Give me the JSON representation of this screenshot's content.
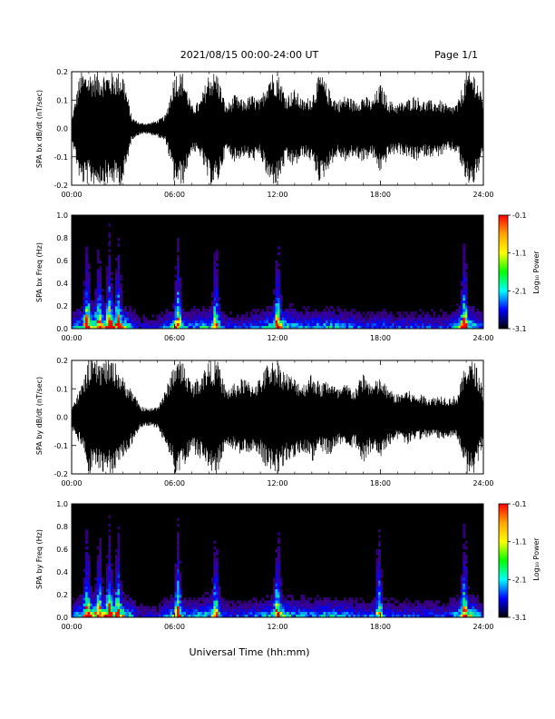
{
  "header": {
    "title": "2021/08/15  00:00-24:00 UT",
    "page": "Page 1/1"
  },
  "xaxis_title": "Universal Time (hh:mm)",
  "chart_data": [
    {
      "type": "line",
      "panel": "bx_waveform",
      "ylabel": "SPA bx dB/dt (nT/sec)",
      "xlim": [
        0,
        24
      ],
      "ylim": [
        -0.2,
        0.2
      ],
      "x_ticks": [
        "00:00",
        "06:00",
        "12:00",
        "18:00",
        "24:00"
      ],
      "y_ticks": [
        "-0.2",
        "-0.1",
        "0.0",
        "0.1",
        "0.2"
      ],
      "envelope_hours": [
        0,
        0.5,
        1,
        1.5,
        2,
        2.5,
        3,
        3.5,
        4,
        4.5,
        5,
        5.5,
        6,
        6.5,
        7,
        7.5,
        8,
        8.5,
        9,
        9.5,
        10,
        10.5,
        11,
        11.5,
        12,
        12.5,
        13,
        13.5,
        14,
        14.5,
        15,
        15.5,
        16,
        16.5,
        17,
        17.5,
        18,
        18.5,
        19,
        19.5,
        20,
        20.5,
        21,
        21.5,
        22,
        22.5,
        23,
        23.5,
        24
      ],
      "envelope_amplitude": [
        0.03,
        0.2,
        0.2,
        0.2,
        0.2,
        0.2,
        0.2,
        0.04,
        0.02,
        0.02,
        0.03,
        0.05,
        0.2,
        0.2,
        0.08,
        0.1,
        0.2,
        0.2,
        0.08,
        0.12,
        0.1,
        0.12,
        0.1,
        0.2,
        0.2,
        0.12,
        0.14,
        0.1,
        0.12,
        0.2,
        0.14,
        0.1,
        0.12,
        0.1,
        0.12,
        0.1,
        0.16,
        0.1,
        0.09,
        0.1,
        0.12,
        0.1,
        0.1,
        0.1,
        0.08,
        0.09,
        0.2,
        0.2,
        0.1
      ]
    },
    {
      "type": "heatmap",
      "panel": "bx_spectrogram",
      "ylabel": "SPA bx Freq (Hz)",
      "xlim": [
        0,
        24
      ],
      "ylim": [
        0.0,
        1.0
      ],
      "x_ticks": [
        "00:00",
        "06:00",
        "12:00",
        "18:00",
        "24:00"
      ],
      "y_ticks": [
        "0.0",
        "0.2",
        "0.4",
        "0.6",
        "0.8",
        "1.0"
      ],
      "colorbar_label": "Log₁₀ Power",
      "colorbar_ticks": [
        "-0.1",
        "-1.1",
        "-2.1",
        "-3.1"
      ],
      "colorbar_range": [
        -3.1,
        -0.1
      ],
      "bursts_hours": [
        0.9,
        1.6,
        2.2,
        2.7,
        6.2,
        8.4,
        12.0,
        22.9
      ],
      "activity_hours": [
        0,
        1,
        2,
        3,
        4,
        5,
        6,
        7,
        8,
        9,
        10,
        11,
        12,
        13,
        14,
        15,
        16,
        17,
        18,
        19,
        20,
        21,
        22,
        23,
        24
      ],
      "activity_level": [
        0.4,
        0.9,
        0.9,
        0.8,
        0.3,
        0.3,
        0.7,
        0.5,
        0.7,
        0.4,
        0.4,
        0.5,
        0.8,
        0.6,
        0.5,
        0.6,
        0.5,
        0.4,
        0.5,
        0.4,
        0.4,
        0.4,
        0.4,
        0.9,
        0.4
      ]
    },
    {
      "type": "line",
      "panel": "by_waveform",
      "ylabel": "SPA by dB/dt (nT/sec)",
      "xlim": [
        0,
        24
      ],
      "ylim": [
        -0.2,
        0.2
      ],
      "x_ticks": [
        "00:00",
        "06:00",
        "12:00",
        "18:00",
        "24:00"
      ],
      "y_ticks": [
        "-0.2",
        "-0.1",
        "0.0",
        "0.1",
        "0.2"
      ],
      "envelope_hours": [
        0,
        0.5,
        1,
        1.5,
        2,
        2.5,
        3,
        3.5,
        4,
        4.5,
        5,
        5.5,
        6,
        6.5,
        7,
        7.5,
        8,
        8.5,
        9,
        9.5,
        10,
        10.5,
        11,
        11.5,
        12,
        12.5,
        13,
        13.5,
        14,
        14.5,
        15,
        15.5,
        16,
        16.5,
        17,
        17.5,
        18,
        18.5,
        19,
        19.5,
        20,
        20.5,
        21,
        21.5,
        22,
        22.5,
        23,
        23.5,
        24
      ],
      "envelope_amplitude": [
        0.04,
        0.1,
        0.2,
        0.2,
        0.2,
        0.2,
        0.14,
        0.1,
        0.04,
        0.03,
        0.04,
        0.1,
        0.2,
        0.2,
        0.12,
        0.15,
        0.2,
        0.2,
        0.1,
        0.12,
        0.14,
        0.12,
        0.14,
        0.2,
        0.2,
        0.16,
        0.14,
        0.12,
        0.16,
        0.12,
        0.14,
        0.1,
        0.12,
        0.1,
        0.16,
        0.12,
        0.14,
        0.1,
        0.08,
        0.1,
        0.08,
        0.08,
        0.07,
        0.08,
        0.07,
        0.08,
        0.2,
        0.2,
        0.1
      ]
    },
    {
      "type": "heatmap",
      "panel": "by_spectrogram",
      "ylabel": "SPA by Freq (Hz)",
      "xlim": [
        0,
        24
      ],
      "ylim": [
        0.0,
        1.0
      ],
      "x_ticks": [
        "00:00",
        "06:00",
        "12:00",
        "18:00",
        "24:00"
      ],
      "y_ticks": [
        "0.0",
        "0.2",
        "0.4",
        "0.6",
        "0.8",
        "1.0"
      ],
      "colorbar_label": "Log₁₀ Power",
      "colorbar_ticks": [
        "-0.1",
        "-1.1",
        "-2.1",
        "-3.1"
      ],
      "colorbar_range": [
        -3.1,
        -0.1
      ],
      "bursts_hours": [
        0.9,
        1.6,
        2.2,
        2.7,
        6.2,
        8.4,
        12.0,
        17.9,
        22.9
      ],
      "activity_hours": [
        0,
        1,
        2,
        3,
        4,
        5,
        6,
        7,
        8,
        9,
        10,
        11,
        12,
        13,
        14,
        15,
        16,
        17,
        18,
        19,
        20,
        21,
        22,
        23,
        24
      ],
      "activity_level": [
        0.4,
        0.9,
        0.9,
        0.8,
        0.3,
        0.3,
        0.7,
        0.5,
        0.7,
        0.4,
        0.4,
        0.5,
        0.8,
        0.6,
        0.5,
        0.6,
        0.5,
        0.4,
        0.5,
        0.4,
        0.4,
        0.4,
        0.4,
        0.9,
        0.4
      ]
    }
  ],
  "colors": {
    "trace": "#000000",
    "spectrogram_background": "#000000",
    "colorbar_stops": [
      "#ff0000",
      "#ffa500",
      "#ffff00",
      "#00ff00",
      "#00ffff",
      "#0000ff",
      "#000000"
    ]
  }
}
